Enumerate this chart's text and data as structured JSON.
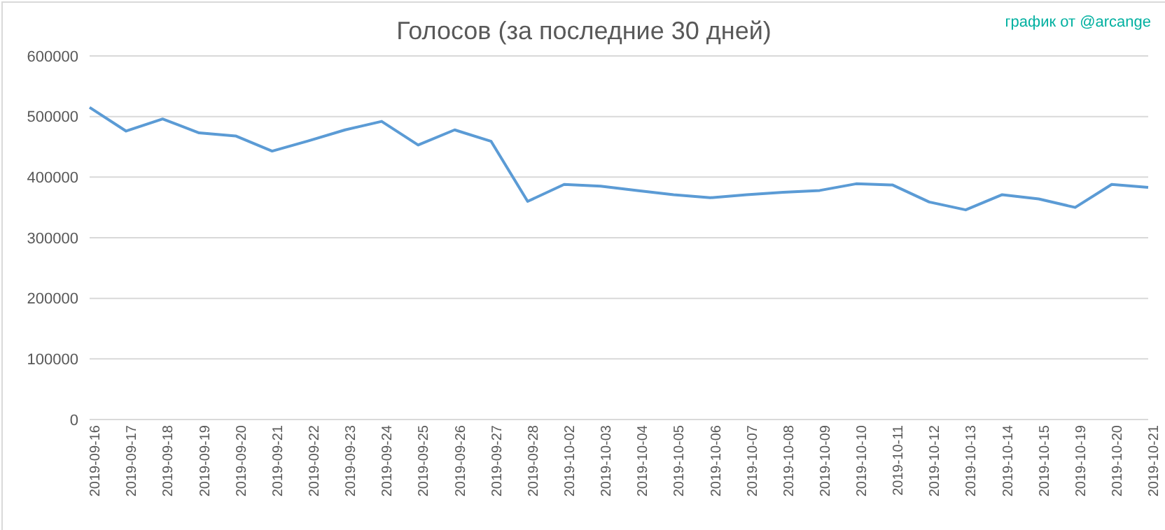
{
  "chart_data": {
    "type": "line",
    "title": "Голосов (за последние 30 дней)",
    "annotations": [
      "график от @arcange"
    ],
    "categories": [
      "2019-09-16",
      "2019-09-17",
      "2019-09-18",
      "2019-09-19",
      "2019-09-20",
      "2019-09-21",
      "2019-09-22",
      "2019-09-23",
      "2019-09-24",
      "2019-09-25",
      "2019-09-26",
      "2019-09-27",
      "2019-09-28",
      "2019-10-02",
      "2019-10-03",
      "2019-10-04",
      "2019-10-05",
      "2019-10-06",
      "2019-10-07",
      "2019-10-08",
      "2019-10-09",
      "2019-10-10",
      "2019-10-11",
      "2019-10-12",
      "2019-10-13",
      "2019-10-14",
      "2019-10-15",
      "2019-10-19",
      "2019-10-20",
      "2019-10-21"
    ],
    "series": [
      {
        "color": "#5b9bd5",
        "values": [
          515000,
          476000,
          496000,
          473000,
          468000,
          443000,
          460000,
          478000,
          492000,
          453000,
          478000,
          459000,
          360000,
          388000,
          385000,
          378000,
          371000,
          366000,
          371000,
          375000,
          378000,
          389000,
          387000,
          359000,
          346000,
          371000,
          364000,
          350000,
          388000,
          383000
        ]
      }
    ],
    "ylim": [
      0,
      600000
    ],
    "yticks": [
      0,
      100000,
      200000,
      300000,
      400000,
      500000,
      600000
    ],
    "grid": "y",
    "legend": false,
    "marker": "none",
    "line_style": "solid"
  }
}
